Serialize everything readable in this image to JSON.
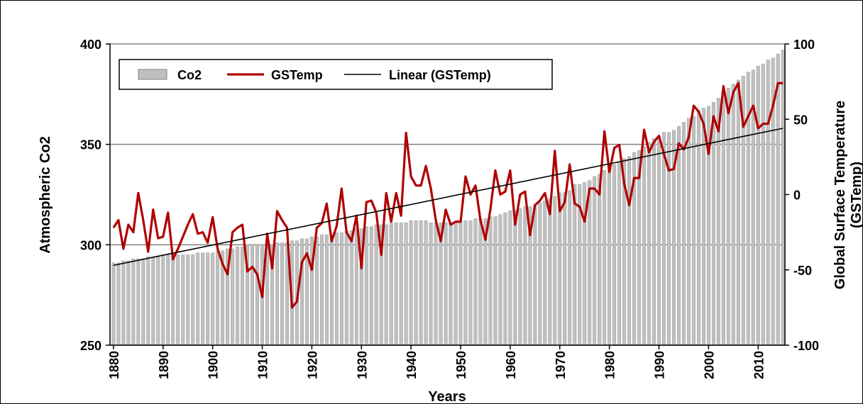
{
  "chart_data": {
    "type": "bar-line",
    "xlabel": "Years",
    "ylabel": "Atmospheric Co2",
    "y2label": [
      "Global Surface  Temperature",
      "(GSTemp)"
    ],
    "x": [
      1880,
      1881,
      1882,
      1883,
      1884,
      1885,
      1886,
      1887,
      1888,
      1889,
      1890,
      1891,
      1892,
      1893,
      1894,
      1895,
      1896,
      1897,
      1898,
      1899,
      1900,
      1901,
      1902,
      1903,
      1904,
      1905,
      1906,
      1907,
      1908,
      1909,
      1910,
      1911,
      1912,
      1913,
      1914,
      1915,
      1916,
      1917,
      1918,
      1919,
      1920,
      1921,
      1922,
      1923,
      1924,
      1925,
      1926,
      1927,
      1928,
      1929,
      1930,
      1931,
      1932,
      1933,
      1934,
      1935,
      1936,
      1937,
      1938,
      1939,
      1940,
      1941,
      1942,
      1943,
      1944,
      1945,
      1946,
      1947,
      1948,
      1949,
      1950,
      1951,
      1952,
      1953,
      1954,
      1955,
      1956,
      1957,
      1958,
      1959,
      1960,
      1961,
      1962,
      1963,
      1964,
      1965,
      1966,
      1967,
      1968,
      1969,
      1970,
      1971,
      1972,
      1973,
      1974,
      1975,
      1976,
      1977,
      1978,
      1979,
      1980,
      1981,
      1982,
      1983,
      1984,
      1985,
      1986,
      1987,
      1988,
      1989,
      1990,
      1991,
      1992,
      1993,
      1994,
      1995,
      1996,
      1997,
      1998,
      1999,
      2000,
      2001,
      2002,
      2003,
      2004,
      2005,
      2006,
      2007,
      2008,
      2009,
      2010,
      2011,
      2012,
      2013,
      2014,
      2015
    ],
    "xlim": [
      1879.3,
      2015.4
    ],
    "xticks": [
      1880,
      1890,
      1900,
      1910,
      1920,
      1930,
      1940,
      1950,
      1960,
      1970,
      1980,
      1990,
      2000,
      2010
    ],
    "ylim": [
      250,
      400
    ],
    "yticks": [
      250,
      300,
      350,
      400
    ],
    "y2lim": [
      -100,
      100
    ],
    "y2ticks": [
      -100,
      -50,
      0,
      50,
      100
    ],
    "grid": true,
    "series": [
      {
        "name": "Co2",
        "kind": "bar",
        "color": "#c0c0c0",
        "values": [
          291,
          291,
          292,
          292,
          293,
          293,
          293,
          294,
          294,
          294,
          295,
          295,
          295,
          295,
          295,
          295,
          295,
          296,
          296,
          296,
          296,
          297,
          297,
          298,
          298,
          299,
          299,
          300,
          300,
          300,
          300,
          300,
          300,
          301,
          301,
          301,
          302,
          302,
          303,
          303,
          304,
          304,
          305,
          305,
          305,
          306,
          306,
          307,
          307,
          308,
          308,
          309,
          309,
          310,
          310,
          310,
          311,
          311,
          311,
          311,
          312,
          312,
          312,
          312,
          311,
          311,
          311,
          311,
          311,
          311,
          312,
          312,
          312,
          313,
          313,
          313,
          314,
          314,
          315,
          316,
          317,
          317,
          318,
          319,
          319,
          320,
          321,
          322,
          323,
          324,
          326,
          326,
          327,
          330,
          330,
          331,
          332,
          334,
          335,
          337,
          339,
          340,
          341,
          343,
          344,
          346,
          347,
          349,
          351,
          353,
          354,
          356,
          356,
          357,
          359,
          361,
          363,
          364,
          367,
          368,
          369,
          371,
          373,
          376,
          378,
          380,
          382,
          384,
          386,
          387,
          389,
          390,
          392,
          393,
          395,
          397
        ]
      },
      {
        "name": "GSTemp",
        "kind": "line",
        "axis": "y2",
        "color": "#b00000",
        "values": [
          -22,
          -17,
          -36,
          -20,
          -25,
          1,
          -17,
          -38,
          -10,
          -29,
          -28,
          -12,
          -43,
          -36,
          -28,
          -20,
          -13,
          -26,
          -25,
          -32,
          -15,
          -36,
          -46,
          -53,
          -25,
          -22,
          -20,
          -51,
          -48,
          -53,
          -68,
          -26,
          -49,
          -11,
          -17,
          -22,
          -75,
          -71,
          -45,
          -39,
          -50,
          -22,
          -19,
          -6,
          -31,
          -21,
          4,
          -25,
          -31,
          -14,
          -49,
          -5,
          -4,
          -12,
          -40,
          1,
          -18,
          1,
          -14,
          41,
          12,
          6,
          6,
          19,
          4,
          -17,
          -31,
          -10,
          -20,
          -18,
          -18,
          12,
          0,
          6,
          -17,
          -30,
          -10,
          16,
          0,
          2,
          16,
          -20,
          0,
          2,
          -27,
          -7,
          -4,
          1,
          -13,
          29,
          -11,
          -5,
          20,
          -6,
          -8,
          -18,
          4,
          4,
          0,
          42,
          15,
          31,
          33,
          7,
          -7,
          11,
          11,
          43,
          28,
          35,
          39,
          27,
          16,
          17,
          34,
          30,
          38,
          59,
          55,
          47,
          27,
          52,
          42,
          72,
          54,
          68,
          74,
          45,
          52,
          59,
          44,
          47,
          47,
          59,
          74,
          74
        ]
      }
    ],
    "trendline": {
      "name": "Linear (GSTemp)",
      "axis": "y2",
      "color": "#000000",
      "x": [
        1880,
        2015
      ],
      "values": [
        -47,
        44
      ]
    }
  }
}
